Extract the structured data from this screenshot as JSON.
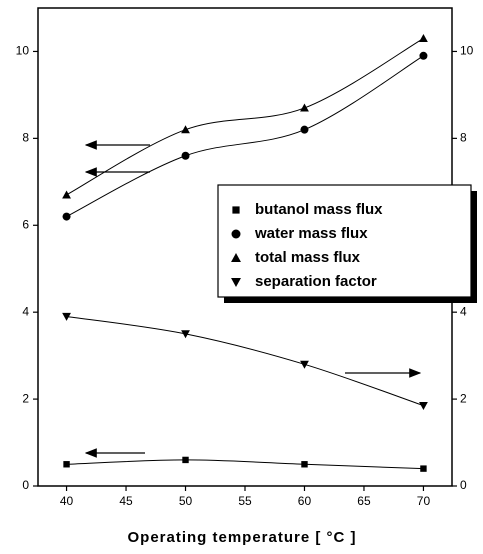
{
  "chart_data": {
    "type": "scatter",
    "x_label": "Operating temperature [ °C ]",
    "x": [
      40,
      50,
      60,
      70
    ],
    "series": [
      {
        "name": "butanol mass flux",
        "color": "#000000",
        "marker": "square",
        "values": [
          0.5,
          0.6,
          0.5,
          0.4
        ]
      },
      {
        "name": "water mass flux",
        "color": "#000000",
        "marker": "circle",
        "values": [
          6.2,
          7.6,
          8.2,
          9.9
        ]
      },
      {
        "name": "total mass flux",
        "color": "#000000",
        "marker": "triangle-up",
        "values": [
          6.7,
          8.2,
          8.7,
          10.3
        ]
      },
      {
        "name": "separation factor",
        "color": "#000000",
        "marker": "triangle-down",
        "axis": "y2",
        "values": [
          3.9,
          3.5,
          2.8,
          1.85
        ]
      }
    ],
    "xlim": [
      37.6,
      72.4
    ],
    "xticks": [
      40,
      45,
      50,
      55,
      60,
      65,
      70
    ],
    "ylim": [
      0,
      11
    ],
    "yticks": [
      0,
      2,
      4,
      6,
      8,
      10
    ],
    "y2lim": [
      0,
      11
    ],
    "y2ticks": [
      0,
      2,
      4,
      6,
      8,
      10
    ]
  }
}
